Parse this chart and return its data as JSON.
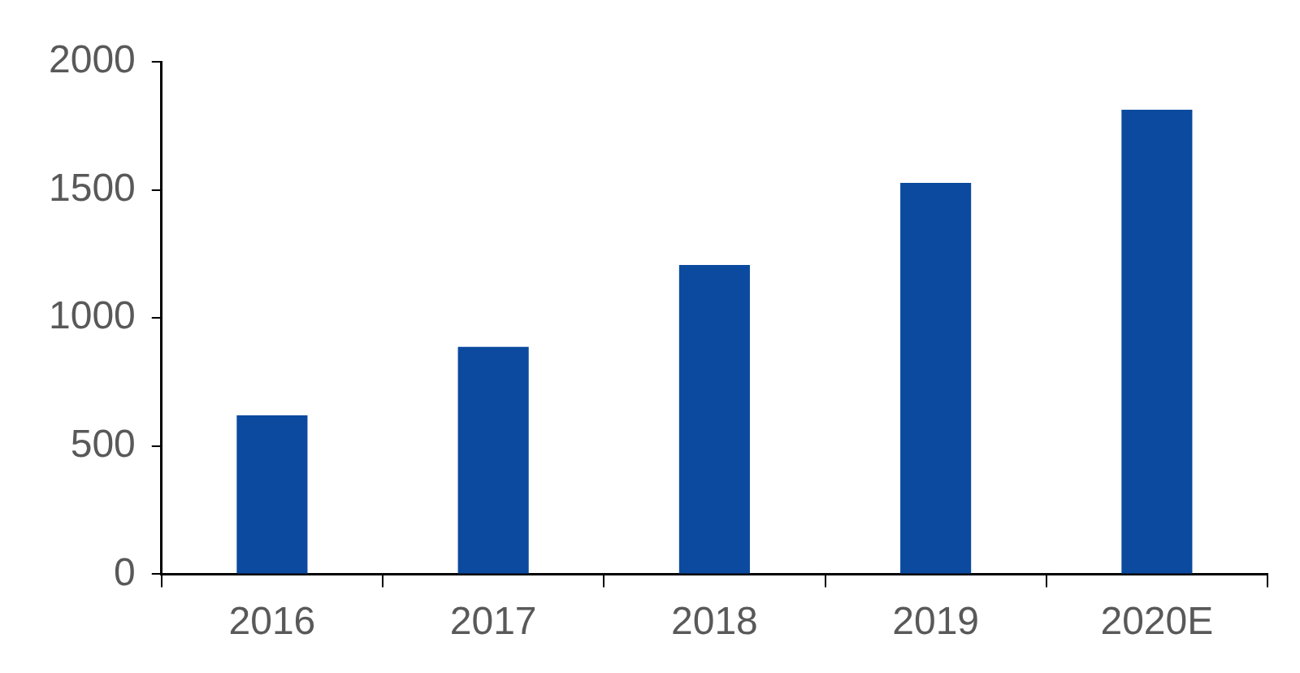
{
  "chart_data": {
    "type": "bar",
    "categories": [
      "2016",
      "2017",
      "2018",
      "2019",
      "2020E"
    ],
    "values": [
      620,
      887,
      1207,
      1527,
      1813
    ],
    "color": "#0b4a9e",
    "ylim": [
      0,
      2000
    ],
    "yticks": [
      0,
      500,
      1000,
      1500,
      2000
    ],
    "grid": false,
    "legend": false
  }
}
